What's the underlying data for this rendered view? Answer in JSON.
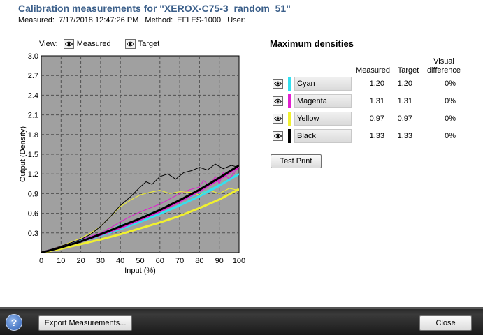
{
  "header": {
    "title": "Calibration measurements for \"XEROX-C75-3_random_51\"",
    "measured_label": "Measured:",
    "measured_value": "7/17/2018 12:47:26 PM",
    "method_label": "Method:",
    "method_value": "EFI ES-1000",
    "user_label": "User:",
    "user_value": ""
  },
  "view": {
    "label": "View:",
    "options": [
      {
        "label": "Measured",
        "icon": "eye-icon"
      },
      {
        "label": "Target",
        "icon": "eye-icon"
      }
    ]
  },
  "max_densities": {
    "title": "Maximum densities",
    "col_measured": "Measured",
    "col_target": "Target",
    "col_visual_line1": "Visual",
    "col_visual_line2": "difference",
    "rows": [
      {
        "name": "Cyan",
        "color": "#33e0f0",
        "measured": "1.20",
        "target": "1.20",
        "visual": "0%"
      },
      {
        "name": "Magenta",
        "color": "#e020d0",
        "measured": "1.31",
        "target": "1.31",
        "visual": "0%"
      },
      {
        "name": "Yellow",
        "color": "#f0f030",
        "measured": "0.97",
        "target": "0.97",
        "visual": "0%"
      },
      {
        "name": "Black",
        "color": "#000000",
        "measured": "1.33",
        "target": "1.33",
        "visual": "0%"
      }
    ],
    "test_print_label": "Test Print"
  },
  "footer": {
    "help_icon": "help-icon",
    "help_glyph": "?",
    "export_label": "Export Measurements...",
    "close_label": "Close"
  },
  "chart_data": {
    "type": "line",
    "xlabel": "Input (%)",
    "ylabel": "Output (Density)",
    "xlim": [
      0,
      100
    ],
    "ylim": [
      0,
      3.0
    ],
    "x_ticks": [
      0,
      10,
      20,
      30,
      40,
      50,
      60,
      70,
      80,
      90,
      100
    ],
    "y_ticks": [
      0.3,
      0.6,
      0.9,
      1.2,
      1.5,
      1.8,
      2.1,
      2.4,
      2.7,
      3.0
    ],
    "grid": true,
    "background": "#a0a0a0",
    "series": [
      {
        "name": "Cyan",
        "kind": "target",
        "color": "#33e0f0",
        "x": [
          0,
          10,
          20,
          30,
          40,
          50,
          60,
          70,
          80,
          90,
          100
        ],
        "y": [
          0,
          0.08,
          0.17,
          0.26,
          0.36,
          0.47,
          0.59,
          0.72,
          0.86,
          1.02,
          1.2
        ]
      },
      {
        "name": "Magenta",
        "kind": "target",
        "color": "#e020d0",
        "x": [
          0,
          10,
          20,
          30,
          40,
          50,
          60,
          70,
          80,
          90,
          100
        ],
        "y": [
          0,
          0.08,
          0.17,
          0.27,
          0.38,
          0.5,
          0.63,
          0.78,
          0.94,
          1.12,
          1.31
        ]
      },
      {
        "name": "Yellow",
        "kind": "target",
        "color": "#f0f030",
        "x": [
          0,
          10,
          20,
          30,
          40,
          50,
          60,
          70,
          80,
          90,
          100
        ],
        "y": [
          0,
          0.06,
          0.13,
          0.2,
          0.28,
          0.37,
          0.46,
          0.56,
          0.68,
          0.81,
          0.97
        ]
      },
      {
        "name": "Black",
        "kind": "target",
        "color": "#000000",
        "x": [
          0,
          10,
          20,
          30,
          40,
          50,
          60,
          70,
          80,
          90,
          100
        ],
        "y": [
          0,
          0.08,
          0.17,
          0.28,
          0.4,
          0.52,
          0.65,
          0.8,
          0.96,
          1.14,
          1.33
        ]
      },
      {
        "name": "Cyan",
        "kind": "measured",
        "color": "#33e0f0",
        "x": [
          0,
          10,
          20,
          30,
          35,
          40,
          45,
          50,
          55,
          60,
          65,
          70,
          75,
          80,
          85,
          90,
          95,
          100
        ],
        "y": [
          0,
          0.09,
          0.19,
          0.3,
          0.35,
          0.42,
          0.47,
          0.53,
          0.6,
          0.66,
          0.72,
          0.78,
          0.84,
          0.9,
          0.96,
          1.04,
          1.1,
          1.2
        ]
      },
      {
        "name": "Magenta",
        "kind": "measured",
        "color": "#e020d0",
        "x": [
          0,
          10,
          20,
          30,
          35,
          40,
          45,
          50,
          55,
          60,
          65,
          70,
          75,
          80,
          82,
          85,
          88,
          90,
          92,
          95,
          100
        ],
        "y": [
          0,
          0.1,
          0.2,
          0.3,
          0.38,
          0.47,
          0.55,
          0.62,
          0.68,
          0.74,
          0.82,
          0.9,
          0.96,
          1.0,
          1.1,
          1.02,
          1.16,
          1.05,
          1.22,
          1.12,
          1.31
        ]
      },
      {
        "name": "Yellow",
        "kind": "measured",
        "color": "#f0f030",
        "x": [
          0,
          10,
          20,
          25,
          30,
          35,
          40,
          45,
          50,
          55,
          60,
          65,
          70,
          75,
          80,
          85,
          90,
          95,
          100
        ],
        "y": [
          0,
          0.1,
          0.22,
          0.3,
          0.4,
          0.55,
          0.7,
          0.8,
          0.88,
          0.92,
          0.95,
          0.9,
          0.93,
          0.92,
          0.88,
          0.95,
          0.9,
          0.98,
          0.95
        ]
      },
      {
        "name": "Black",
        "kind": "measured",
        "color": "#000000",
        "x": [
          0,
          10,
          20,
          25,
          30,
          35,
          40,
          45,
          50,
          53,
          56,
          60,
          64,
          68,
          72,
          76,
          80,
          84,
          88,
          92,
          96,
          100
        ],
        "y": [
          0,
          0.1,
          0.2,
          0.28,
          0.4,
          0.55,
          0.72,
          0.85,
          1.0,
          1.08,
          1.04,
          1.16,
          1.2,
          1.12,
          1.22,
          1.25,
          1.3,
          1.26,
          1.35,
          1.28,
          1.33,
          1.3
        ]
      }
    ]
  }
}
